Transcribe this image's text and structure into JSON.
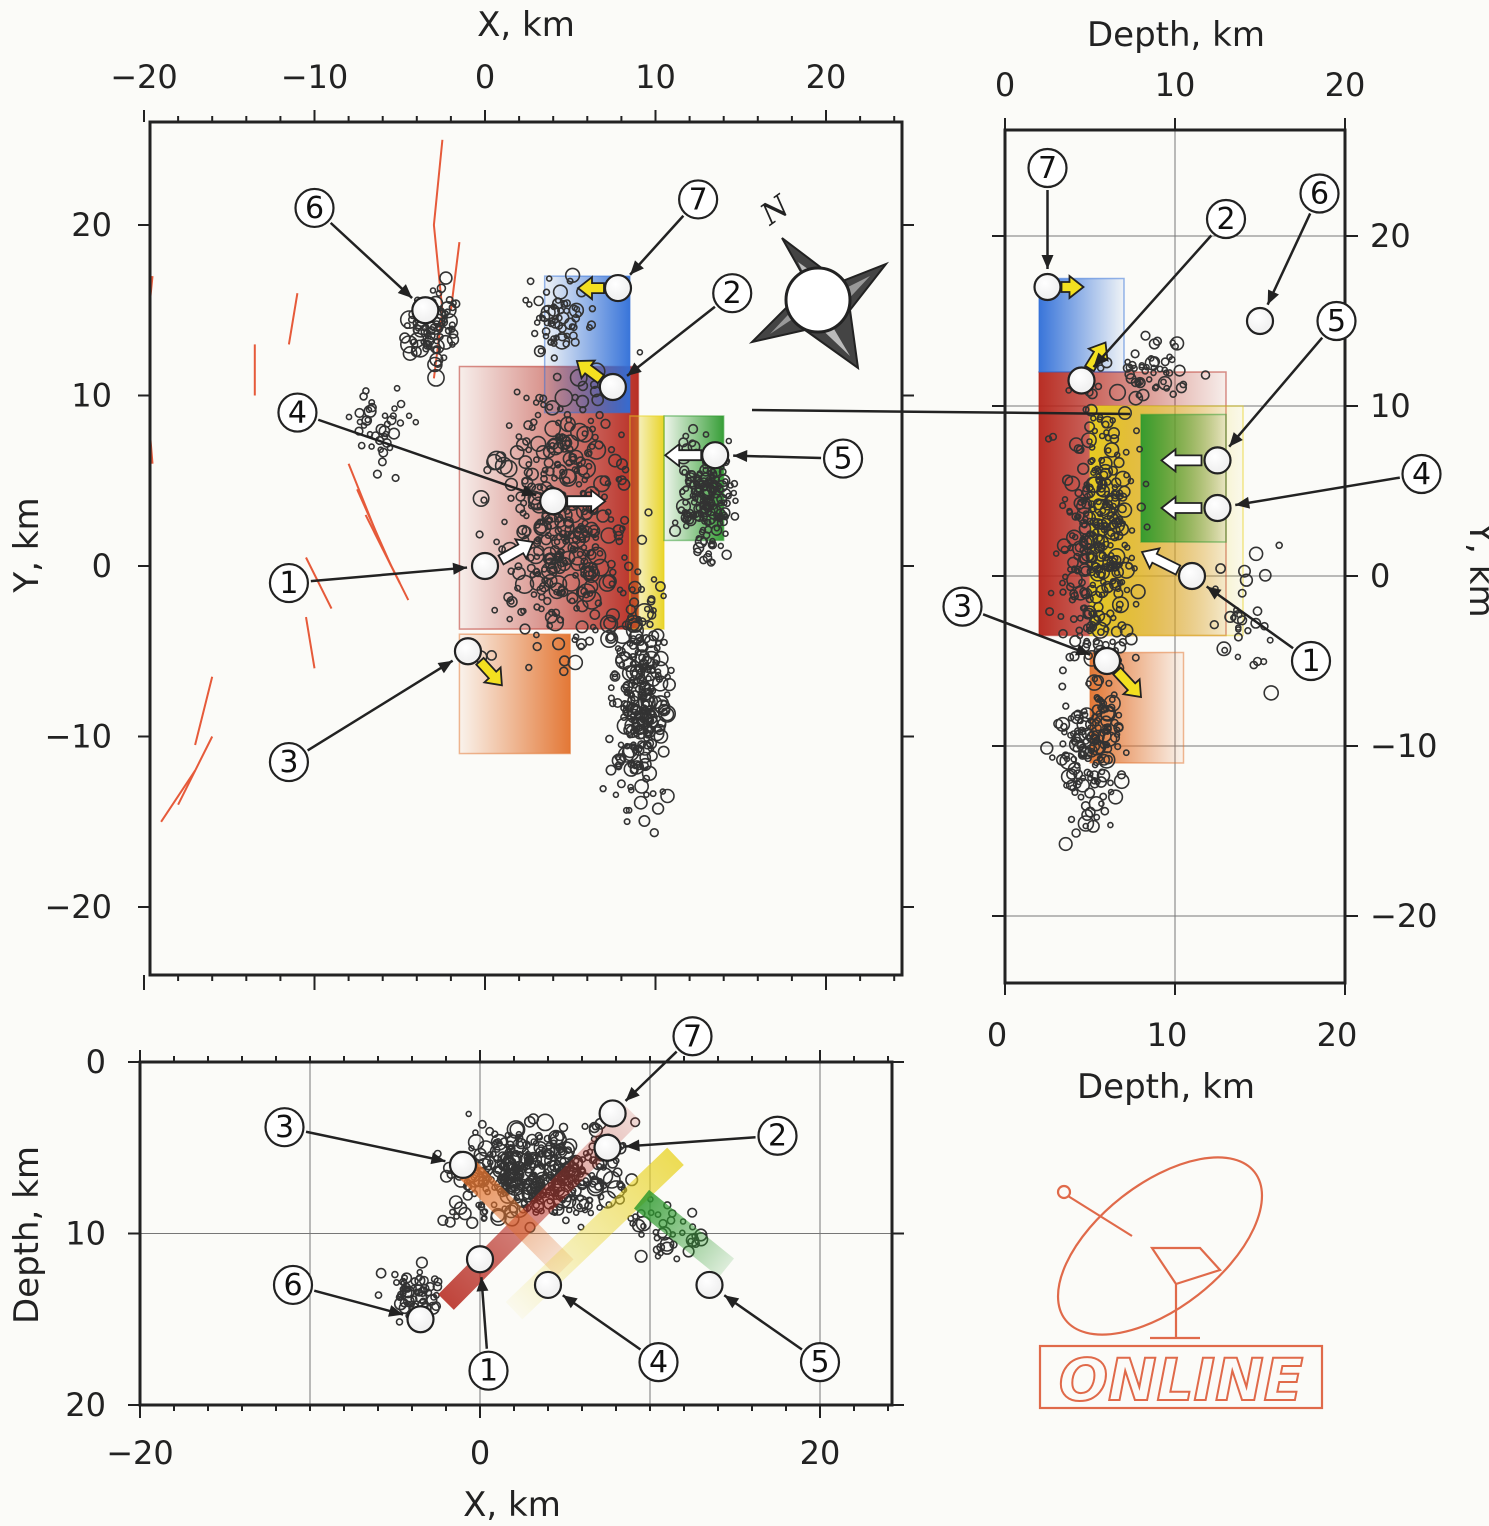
{
  "panels": {
    "map": {
      "x_axis": {
        "label": "X,  km",
        "ticks": [
          -20,
          -10,
          0,
          10,
          20
        ]
      },
      "y_axis": {
        "label": "Y,  km",
        "ticks": [
          20,
          10,
          0,
          -10,
          -20
        ]
      }
    },
    "side": {
      "top_axis": {
        "label": "Depth,  km",
        "ticks": [
          0,
          10,
          20
        ]
      },
      "bottom_axis": {
        "label": "Depth,  km",
        "ticks": [
          0,
          10,
          20
        ]
      },
      "y_axis": {
        "label": "Y,  km",
        "ticks": [
          20,
          10,
          0,
          -10,
          -20
        ]
      }
    },
    "cross": {
      "x_axis": {
        "label": "X,  km",
        "ticks": [
          -20,
          0,
          20
        ]
      },
      "y_axis": {
        "label": "Depth,  km",
        "ticks": [
          0,
          10,
          20
        ]
      }
    }
  },
  "compass": {
    "north_label": "N"
  },
  "logo": {
    "text": "ONLINE",
    "color": "#e06a4a"
  },
  "colors": {
    "fault_red": "#b5241a",
    "fault_orange": "#e2712c",
    "fault_blue": "#2f6ed8",
    "fault_yellow": "#e8d21e",
    "fault_green": "#2e9a2e",
    "fault_trace": "#e65a3a"
  },
  "chart_data": [
    {
      "type": "scatter",
      "title": "",
      "xlabel": "X,  km",
      "ylabel": "Y,  km",
      "xlim": [
        -20,
        24
      ],
      "ylim": [
        -24,
        26
      ],
      "grid": false,
      "faults": [
        {
          "id": "1",
          "color": "#b5241a",
          "x": [
            -1.5,
            9
          ],
          "y": [
            -3.7,
            11.7
          ]
        },
        {
          "id": "2",
          "color": "#2f6ed8",
          "x": [
            3.5,
            8.5
          ],
          "y": [
            9,
            17
          ]
        },
        {
          "id": "3",
          "color": "#e2712c",
          "x": [
            -1.5,
            5
          ],
          "y": [
            -11,
            -4
          ]
        },
        {
          "id": "4",
          "color": "#e8d21e",
          "x": [
            8.5,
            10.5
          ],
          "y": [
            -3.7,
            8.8
          ]
        },
        {
          "id": "5",
          "color": "#2e9a2e",
          "x": [
            10.5,
            14
          ],
          "y": [
            1.5,
            8.8
          ]
        }
      ],
      "event_markers": [
        {
          "label": "1",
          "x": 0,
          "y": 0,
          "arrow_to": [
            -1.5,
            0
          ],
          "label_at": [
            -11.5,
            -1
          ]
        },
        {
          "label": "2",
          "x": 7.5,
          "y": 10.5,
          "arrow_to": [
            8.5,
            11
          ],
          "label_at": [
            14.5,
            16
          ]
        },
        {
          "label": "3",
          "x": -1,
          "y": -5,
          "arrow_to": [
            -2,
            -6
          ],
          "label_at": [
            -11.5,
            -11.5
          ]
        },
        {
          "label": "4",
          "x": 4,
          "y": 3.8,
          "arrow_to": [
            3,
            4.5
          ],
          "label_at": [
            -11,
            9
          ]
        },
        {
          "label": "5",
          "x": 13.5,
          "y": 6.5,
          "arrow_to": [
            14.5,
            6.5
          ],
          "label_at": [
            21,
            6.3
          ]
        },
        {
          "label": "6",
          "x": -3.5,
          "y": 15,
          "arrow_to": [
            -4.5,
            16
          ],
          "label_at": [
            -10,
            21
          ]
        },
        {
          "label": "7",
          "x": 7.8,
          "y": 16.3,
          "arrow_to": [
            8.5,
            17.5
          ],
          "label_at": [
            12.5,
            21.5
          ]
        }
      ]
    },
    {
      "type": "scatter",
      "title": "",
      "xlabel": "Depth,  km",
      "ylabel": "Y,  km",
      "xlim": [
        0,
        20
      ],
      "ylim": [
        -24,
        26
      ],
      "grid": true,
      "faults": [
        {
          "id": "1",
          "color": "#b5241a",
          "x": [
            2,
            13
          ],
          "y": [
            -3.5,
            12
          ]
        },
        {
          "id": "2",
          "color": "#2f6ed8",
          "x": [
            2,
            7
          ],
          "y": [
            12,
            17.5
          ]
        },
        {
          "id": "3",
          "color": "#e2712c",
          "x": [
            5,
            10.5
          ],
          "y": [
            -11,
            -4.5
          ]
        },
        {
          "id": "4",
          "color": "#e8d21e",
          "x": [
            5,
            14
          ],
          "y": [
            -3.5,
            10
          ]
        },
        {
          "id": "5",
          "color": "#2e9a2e",
          "x": [
            8,
            13
          ],
          "y": [
            2,
            9.5
          ]
        }
      ],
      "event_markers": [
        {
          "label": "1",
          "x": 11,
          "y": 0,
          "label_at": [
            18,
            -5
          ]
        },
        {
          "label": "2",
          "x": 4.5,
          "y": 11.5,
          "label_at": [
            13,
            21
          ]
        },
        {
          "label": "3",
          "x": 6,
          "y": -5,
          "label_at": [
            -2.5,
            -1.8
          ]
        },
        {
          "label": "4",
          "x": 12.5,
          "y": 4,
          "label_at": [
            24.5,
            6
          ]
        },
        {
          "label": "5",
          "x": 12.5,
          "y": 6.8,
          "label_at": [
            19.5,
            15
          ]
        },
        {
          "label": "6",
          "x": 15,
          "y": 15,
          "label_at": [
            18.5,
            22.5
          ]
        },
        {
          "label": "7",
          "x": 2.5,
          "y": 17,
          "label_at": [
            2.5,
            24
          ]
        }
      ]
    },
    {
      "type": "scatter",
      "title": "",
      "xlabel": "X,  km",
      "ylabel": "Depth,  km",
      "xlim": [
        -20,
        24
      ],
      "ylim": [
        0,
        20
      ],
      "grid": true,
      "faults": [
        {
          "id": "1",
          "color": "#b5241a",
          "x": [
            -2,
            9
          ],
          "y": [
            3,
            14
          ]
        },
        {
          "id": "3",
          "color": "#e2712c",
          "x": [
            -1,
            5
          ],
          "y": [
            6,
            12
          ]
        },
        {
          "id": "4",
          "color": "#e8d21e",
          "x": [
            2,
            11.5
          ],
          "y": [
            5.5,
            14.5
          ]
        },
        {
          "id": "5",
          "color": "#2e9a2e",
          "x": [
            9.5,
            14.5
          ],
          "y": [
            8,
            12
          ]
        }
      ],
      "event_markers": [
        {
          "label": "1",
          "x": 0,
          "y": 11.5,
          "label_at": [
            0.5,
            18
          ]
        },
        {
          "label": "2",
          "x": 7.5,
          "y": 5,
          "label_at": [
            17.5,
            4.3
          ]
        },
        {
          "label": "3",
          "x": -1,
          "y": 6,
          "label_at": [
            -11.5,
            3.8
          ]
        },
        {
          "label": "4",
          "x": 4,
          "y": 13,
          "label_at": [
            10.5,
            17.5
          ]
        },
        {
          "label": "5",
          "x": 13.5,
          "y": 13,
          "label_at": [
            20,
            17.5
          ]
        },
        {
          "label": "6",
          "x": -3.5,
          "y": 15,
          "label_at": [
            -11,
            13
          ]
        },
        {
          "label": "7",
          "x": 7.8,
          "y": 3,
          "label_at": [
            12.5,
            -1.5
          ]
        }
      ]
    }
  ]
}
